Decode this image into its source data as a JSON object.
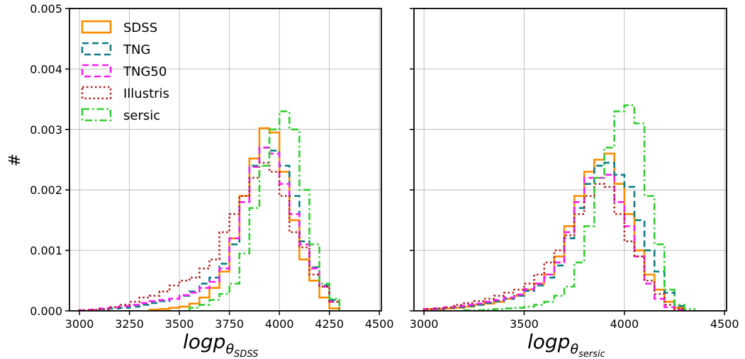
{
  "chart_data": [
    {
      "type": "histogram",
      "xlabel": {
        "base": "logp",
        "sub": "θ",
        "subsub": "SDSS"
      },
      "ylabel": "#",
      "xlim": [
        2950,
        4510
      ],
      "ylim": [
        0,
        0.005
      ],
      "xticks": [
        3000,
        3250,
        3500,
        3750,
        4000,
        4250,
        4500
      ],
      "xtick_labels": [
        "3000",
        "3250",
        "3500",
        "3750",
        "4000",
        "4250",
        "4500"
      ],
      "yticks": [
        0,
        0.001,
        0.002,
        0.003,
        0.004,
        0.005
      ],
      "ytick_labels": [
        "0.000",
        "0.001",
        "0.002",
        "0.003",
        "0.004",
        "0.005"
      ],
      "grid": true,
      "legend_position": "upper-left",
      "series": [
        {
          "name": "SDSS",
          "color": "#ff8c00",
          "style": "solid",
          "edges": [
            3350,
            3400,
            3450,
            3500,
            3550,
            3600,
            3650,
            3700,
            3750,
            3800,
            3850,
            3900,
            3950,
            4000,
            4050,
            4100,
            4150,
            4200,
            4250,
            4300
          ],
          "values": [
            2e-05,
            3e-05,
            5e-05,
            7e-05,
            0.00012,
            0.00022,
            0.00038,
            0.00065,
            0.0012,
            0.0019,
            0.00252,
            0.00302,
            0.00295,
            0.0023,
            0.0015,
            0.00085,
            0.0005,
            0.00022,
            4e-05
          ]
        },
        {
          "name": "TNG",
          "color": "#0e7c86",
          "style": "dashed",
          "edges": [
            3000,
            3050,
            3100,
            3150,
            3200,
            3250,
            3300,
            3350,
            3400,
            3450,
            3500,
            3550,
            3600,
            3650,
            3700,
            3750,
            3800,
            3850,
            3900,
            3950,
            4000,
            4050,
            4100,
            4150,
            4200,
            4250,
            4300
          ],
          "values": [
            1e-05,
            2e-05,
            3e-05,
            4e-05,
            5e-05,
            7e-05,
            0.0001,
            0.00013,
            0.00016,
            0.0002,
            0.00025,
            0.00032,
            0.00045,
            0.00055,
            0.00078,
            0.0011,
            0.0018,
            0.0024,
            0.0027,
            0.00265,
            0.0024,
            0.0019,
            0.00115,
            0.00072,
            0.00042,
            0.00018,
            6e-05
          ]
        },
        {
          "name": "TNG50",
          "color": "#ff1ef0",
          "style": "dashed",
          "edges": [
            3000,
            3050,
            3100,
            3150,
            3200,
            3250,
            3300,
            3350,
            3400,
            3450,
            3500,
            3550,
            3600,
            3650,
            3700,
            3750,
            3800,
            3850,
            3900,
            3950,
            4000,
            4050,
            4100,
            4150,
            4200,
            4250,
            4300
          ],
          "values": [
            1e-05,
            2e-05,
            4e-05,
            6e-05,
            8e-05,
            0.0001,
            0.00013,
            0.00016,
            0.00018,
            0.0002,
            0.00026,
            0.0003,
            0.00038,
            0.00048,
            0.0007,
            0.0012,
            0.0018,
            0.00238,
            0.0027,
            0.0026,
            0.0021,
            0.0016,
            0.0011,
            0.0007,
            0.0004,
            0.00015,
            4e-05
          ]
        },
        {
          "name": "Illustris",
          "color": "#b22222",
          "style": "dotted",
          "edges": [
            3000,
            3050,
            3100,
            3150,
            3200,
            3250,
            3300,
            3350,
            3400,
            3450,
            3500,
            3550,
            3600,
            3650,
            3700,
            3750,
            3800,
            3850,
            3900,
            3950,
            4000,
            4050,
            4100,
            4150,
            4200,
            4250,
            4300
          ],
          "values": [
            1e-05,
            2e-05,
            3e-05,
            6e-05,
            0.0001,
            0.00015,
            0.00022,
            0.00025,
            0.00032,
            0.00042,
            0.0005,
            0.00055,
            0.0007,
            0.00085,
            0.0013,
            0.0016,
            0.0019,
            0.0022,
            0.00245,
            0.0023,
            0.0019,
            0.0013,
            0.00105,
            0.0006,
            0.0004,
            0.00015,
            4e-05
          ]
        },
        {
          "name": "sersic",
          "color": "#32cd32",
          "style": "dashdot",
          "edges": [
            3550,
            3600,
            3650,
            3700,
            3750,
            3800,
            3850,
            3900,
            3950,
            4000,
            4050,
            4100,
            4150,
            4200,
            4250,
            4300
          ],
          "values": [
            5e-05,
            0.0001,
            0.00018,
            0.00028,
            0.00045,
            0.00095,
            0.0017,
            0.0024,
            0.003,
            0.0033,
            0.003,
            0.002,
            0.0011,
            0.00045,
            0.0002
          ]
        }
      ]
    },
    {
      "type": "histogram",
      "xlabel": {
        "base": "logp",
        "sub": "θ",
        "subsub": "sersic"
      },
      "ylabel": "",
      "xlim": [
        2950,
        4510
      ],
      "ylim": [
        0,
        0.005
      ],
      "xticks": [
        3000,
        3500,
        4000,
        4500
      ],
      "xtick_labels": [
        "3000",
        "3500",
        "4000",
        "4500"
      ],
      "yticks": [
        0,
        0.001,
        0.002,
        0.003,
        0.004,
        0.005
      ],
      "grid": true,
      "series": [
        {
          "name": "SDSS",
          "color": "#ff8c00",
          "style": "solid",
          "edges": [
            3000,
            3050,
            3100,
            3150,
            3200,
            3250,
            3300,
            3350,
            3400,
            3450,
            3500,
            3550,
            3600,
            3650,
            3700,
            3750,
            3800,
            3850,
            3900,
            3950,
            4000,
            4050,
            4100,
            4150,
            4200,
            4250,
            4300
          ],
          "values": [
            3e-05,
            3e-05,
            4e-05,
            5e-05,
            7e-05,
            0.0001,
            0.00012,
            0.00015,
            0.0002,
            0.00025,
            0.00035,
            0.00045,
            0.0006,
            0.0009,
            0.0014,
            0.0019,
            0.0023,
            0.0025,
            0.0026,
            0.0021,
            0.0016,
            0.001,
            0.0006,
            0.00035,
            0.00015,
            5e-05
          ]
        },
        {
          "name": "TNG",
          "color": "#0e7c86",
          "style": "dashed",
          "edges": [
            3000,
            3050,
            3100,
            3150,
            3200,
            3250,
            3300,
            3350,
            3400,
            3450,
            3500,
            3550,
            3600,
            3650,
            3700,
            3750,
            3800,
            3850,
            3900,
            3950,
            4000,
            4050,
            4100,
            4150,
            4200,
            4250,
            4300
          ],
          "values": [
            3e-05,
            3e-05,
            5e-05,
            6e-05,
            8e-05,
            0.0001,
            0.00013,
            0.00016,
            0.0002,
            0.00025,
            0.00033,
            0.00042,
            0.00055,
            0.00075,
            0.0012,
            0.0017,
            0.0021,
            0.0024,
            0.00245,
            0.00225,
            0.00205,
            0.0015,
            0.001,
            0.00065,
            0.0003,
            8e-05
          ]
        },
        {
          "name": "TNG50",
          "color": "#ff1ef0",
          "style": "dashed",
          "edges": [
            3000,
            3050,
            3100,
            3150,
            3200,
            3250,
            3300,
            3350,
            3400,
            3450,
            3500,
            3550,
            3600,
            3650,
            3700,
            3750,
            3800,
            3850,
            3900,
            3950,
            4000,
            4050,
            4100,
            4150,
            4200,
            4250,
            4300
          ],
          "values": [
            3e-05,
            4e-05,
            6e-05,
            8e-05,
            0.0001,
            0.00012,
            0.00015,
            0.00018,
            0.00022,
            0.00027,
            0.00036,
            0.00045,
            0.0006,
            0.0008,
            0.0013,
            0.0018,
            0.0022,
            0.0022,
            0.00225,
            0.0018,
            0.0014,
            0.0009,
            0.00045,
            0.0002,
            6e-05,
            2e-05
          ]
        },
        {
          "name": "Illustris",
          "color": "#b22222",
          "style": "dotted",
          "edges": [
            3000,
            3050,
            3100,
            3150,
            3200,
            3250,
            3300,
            3350,
            3400,
            3450,
            3500,
            3550,
            3600,
            3650,
            3700,
            3750,
            3800,
            3850,
            3900,
            3950,
            4000,
            4050,
            4100,
            4150,
            4200,
            4250,
            4300
          ],
          "values": [
            3e-05,
            4e-05,
            6e-05,
            0.0001,
            0.00013,
            0.00016,
            0.0002,
            0.00025,
            0.0003,
            0.00035,
            0.00045,
            0.0006,
            0.0008,
            0.001,
            0.00125,
            0.0016,
            0.0019,
            0.0021,
            0.00205,
            0.0016,
            0.00115,
            0.0009,
            0.0005,
            0.00028,
            0.0001,
            3e-05
          ]
        },
        {
          "name": "sersic",
          "color": "#32cd32",
          "style": "dashdot",
          "edges": [
            3200,
            3250,
            3300,
            3350,
            3400,
            3450,
            3500,
            3550,
            3600,
            3650,
            3700,
            3750,
            3800,
            3850,
            3900,
            3950,
            4000,
            4050,
            4100,
            4150,
            4200,
            4250,
            4300,
            4350
          ],
          "values": [
            1e-05,
            1e-05,
            2e-05,
            3e-05,
            4e-05,
            5e-05,
            7e-05,
            0.0001,
            0.00015,
            0.00025,
            0.0004,
            0.0008,
            0.0014,
            0.0022,
            0.0027,
            0.0033,
            0.0034,
            0.0031,
            0.0019,
            0.0011,
            0.00035,
            0.0001,
            3e-05
          ]
        }
      ]
    }
  ]
}
